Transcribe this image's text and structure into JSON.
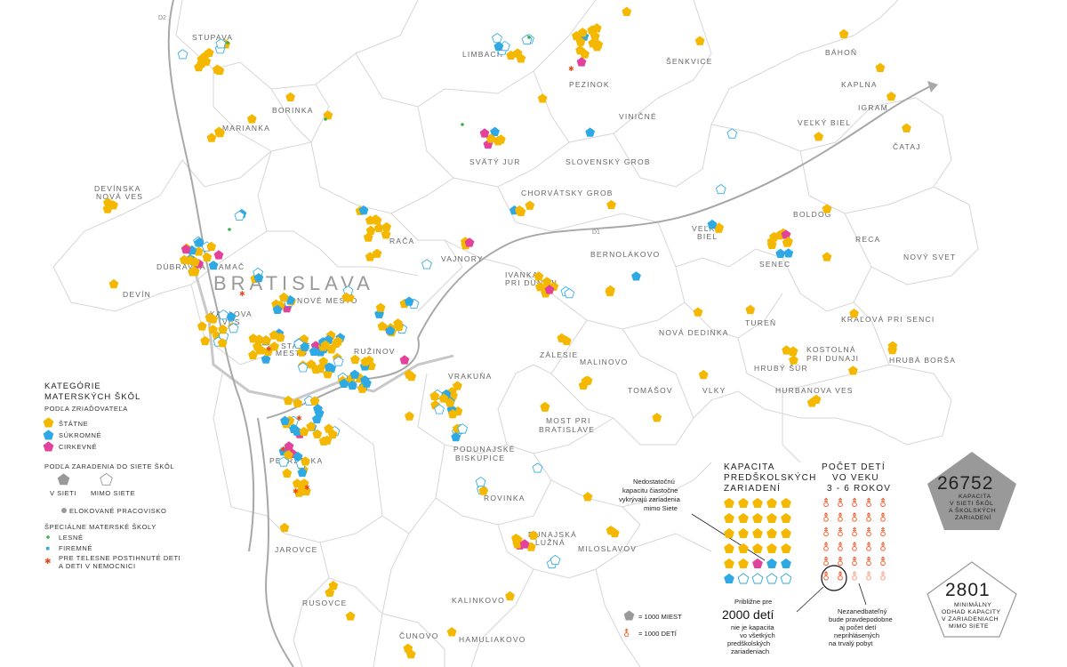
{
  "colors": {
    "state": "#F5B800",
    "private": "#2EA9E4",
    "church": "#E2429B",
    "forest": "#3DB04B",
    "company": "#2EA9E4",
    "hospital": "#E8491C",
    "outside": "#2EA9E4",
    "network": "#999999",
    "children": "#F05A28",
    "children_unreg": "#F7B9A8",
    "boundary": "#D4D4D4",
    "road": "#A8A8A8"
  },
  "map": {
    "city_label": "BRATISLAVA",
    "roads": [
      "D2",
      "D1"
    ],
    "places": [
      {
        "name": "STUPAVA"
      },
      {
        "name": "LIMBACH"
      },
      {
        "name": "PEZINOK"
      },
      {
        "name": "ŠENKVICE"
      },
      {
        "name": "BÁHOŇ"
      },
      {
        "name": "KAPLNA"
      },
      {
        "name": "IGRAM"
      },
      {
        "name": "BORINKA"
      },
      {
        "name": "MARIANKA"
      },
      {
        "name": "VINIČNÉ"
      },
      {
        "name": "VEĽKÝ BIEL"
      },
      {
        "name": "ČATAJ"
      },
      {
        "name": "SVÄTÝ JUR"
      },
      {
        "name": "SLOVENSKÝ GROB"
      },
      {
        "name": "DEVÍNSKA"
      },
      {
        "name": "NOVÁ VES"
      },
      {
        "name": "CHORVÁTSKY GROB"
      },
      {
        "name": "BOLDOG"
      },
      {
        "name": "VEĽKÝ"
      },
      {
        "name": "BIEL"
      },
      {
        "name": "RECA"
      },
      {
        "name": "SENEC"
      },
      {
        "name": "NOVÝ SVET"
      },
      {
        "name": "DÚBRAVKA"
      },
      {
        "name": "LAMAČ"
      },
      {
        "name": "RAČA"
      },
      {
        "name": "VAJNORY"
      },
      {
        "name": "BERNOLÁKOVO"
      },
      {
        "name": "DEVÍN"
      },
      {
        "name": "NOVÉ MESTO"
      },
      {
        "name": "IVANKA"
      },
      {
        "name": "PRI DUNAJI"
      },
      {
        "name": "KARLOVA"
      },
      {
        "name": "VES"
      },
      {
        "name": "TUREŇ"
      },
      {
        "name": "KRÁĽOVÁ PRI SENCI"
      },
      {
        "name": "NOVÁ DEDINKA"
      },
      {
        "name": "STARÉ"
      },
      {
        "name": "MESTO"
      },
      {
        "name": "RUŽINOV"
      },
      {
        "name": "ZÁLESIE"
      },
      {
        "name": "KOSTOLNÁ"
      },
      {
        "name": "PRI DUNAJI"
      },
      {
        "name": "HRUBÁ BORŠA"
      },
      {
        "name": "HRUBÝ ŠÚR"
      },
      {
        "name": "MALINOVO"
      },
      {
        "name": "VRAKUŇA"
      },
      {
        "name": "TOMÁŠOV"
      },
      {
        "name": "VLKY"
      },
      {
        "name": "HURBANOVA VES"
      },
      {
        "name": "MOST PRI"
      },
      {
        "name": "BRATISLAVE"
      },
      {
        "name": "PETRŽALKA"
      },
      {
        "name": "PODUNAJSKÉ"
      },
      {
        "name": "BISKUPICE"
      },
      {
        "name": "ROVINKA"
      },
      {
        "name": "JAROVCE"
      },
      {
        "name": "DUNAJSKÁ"
      },
      {
        "name": "LUŽNÁ"
      },
      {
        "name": "MILOSLAVOV"
      },
      {
        "name": "RUSOVCE"
      },
      {
        "name": "KALINKOVO"
      },
      {
        "name": "ČUNOVO"
      },
      {
        "name": "HAMULIAKOVO"
      }
    ]
  },
  "legend": {
    "title1": "KATEGÓRIE",
    "title2": "MATERSKÝCH ŠKÔL",
    "by_founder": "PODĽA ZRIAĎOVATEĽA",
    "state": "ŠTÁTNE",
    "private": "SÚKROMNÉ",
    "church": "CIRKEVNÉ",
    "by_network": "PODĽA ZARADENIA DO SIETE ŠKÔL",
    "in_network": "V SIETI",
    "outside_network": "MIMO SIETE",
    "detached": "ELOKOVANÉ PRACOVISKO",
    "special": "ŠPECIÁLNE MATERSKÉ ŠKOLY",
    "forest": "LESNÉ",
    "company": "FIREMNÉ",
    "hospital1": "PRE TELESNE POSTIHNUTÉ DETI",
    "hospital2": "A DETI V NEMOCNICI"
  },
  "capacity": {
    "title1": "KAPACITA",
    "title2": "PREDŠKOLSKÝCH",
    "title3": "ZARIADENÍ",
    "note1": "Nedostatočnú",
    "note2": "kapacitu čiastočne",
    "note3": "vykrývajú zariadenia",
    "note4": "mimo Siete",
    "units_state_in": 22,
    "units_church": 1,
    "units_private": 3,
    "units_outside": 4
  },
  "children": {
    "title1": "POČET DETÍ",
    "title2": "VO VEKU",
    "title3": "3 - 6 ROKOV",
    "units_registered": 30,
    "units_unregistered": 3,
    "note1": "Nezanedbateľný",
    "note2": "bude pravdepodobne",
    "note3": "aj počet detí",
    "note4": "neprihlásených",
    "note5": "na trvalý pobyt"
  },
  "shortfall": {
    "l1": "Približne pre",
    "l2": "2000 detí",
    "l3": "nie je kapacita",
    "l4": "vo všetkých",
    "l5": "predškolských",
    "l6": "zariadeniach"
  },
  "scale": {
    "seats": "= 1000 MIEST",
    "kids": "= 1000 DETÍ"
  },
  "totals": {
    "in_network_value": "26752",
    "in_network_l1": "KAPACITA",
    "in_network_l2": "V SIETI ŠKÔL",
    "in_network_l3": "A ŠKOLSKÝCH",
    "in_network_l4": "ZARIADENÍ",
    "outside_value": "2801",
    "outside_l1": "MINIMÁLNY",
    "outside_l2": "ODHAD KAPACITY",
    "outside_l3": "V ZARIADENIACH",
    "outside_l4": "MIMO SIETE"
  }
}
